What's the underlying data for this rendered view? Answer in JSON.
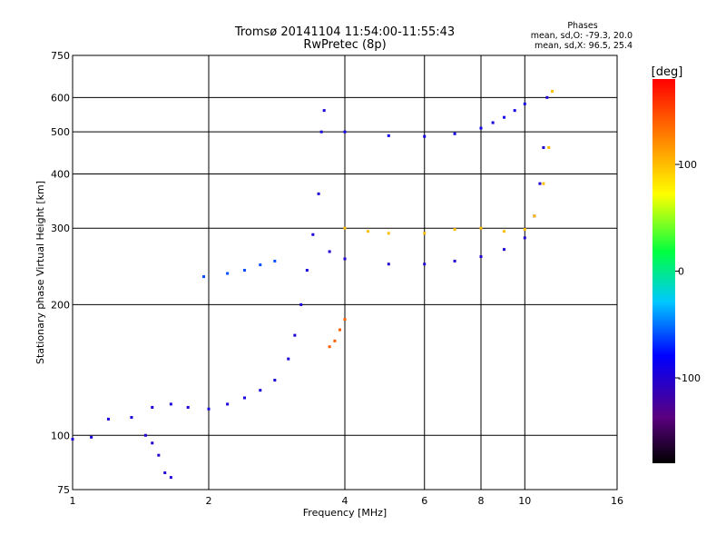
{
  "chart_data": {
    "type": "scatter",
    "title": "Tromsø 20141104 11:54:00-11:55:43",
    "subtitle": "RwPretec (8p)",
    "xlabel": "Frequency [MHz]",
    "ylabel": "Stationary phase Virtual Height [km]",
    "x_scale": "log",
    "y_scale": "log",
    "xlim": [
      1,
      16
    ],
    "ylim": [
      75,
      750
    ],
    "x_ticks": [
      1,
      2,
      4,
      6,
      8,
      10,
      16
    ],
    "y_ticks": [
      75,
      100,
      200,
      300,
      400,
      500,
      600,
      750
    ],
    "grid": true,
    "stats": {
      "heading": "Phases",
      "line_o": "mean, sd,O:  -79.3, 20.0",
      "line_x": "mean, sd,X:   96.5, 25.4"
    },
    "colorbar": {
      "label": "[deg]",
      "range": [
        -180,
        180
      ],
      "ticks": [
        100,
        0,
        -100
      ]
    },
    "series": [
      {
        "points": [
          [
            1.0,
            98
          ],
          [
            1.1,
            99
          ],
          [
            1.2,
            109
          ],
          [
            1.35,
            110
          ],
          [
            1.5,
            116
          ],
          [
            1.65,
            118
          ],
          [
            1.8,
            116
          ],
          [
            2.0,
            115
          ],
          [
            2.2,
            118
          ],
          [
            2.4,
            122
          ],
          [
            2.6,
            127
          ],
          [
            2.8,
            134
          ],
          [
            3.0,
            150
          ],
          [
            3.1,
            170
          ],
          [
            3.2,
            200
          ],
          [
            3.3,
            240
          ],
          [
            3.4,
            290
          ],
          [
            3.5,
            360
          ],
          [
            3.55,
            500
          ],
          [
            3.6,
            560
          ]
        ],
        "phase": -95
      },
      {
        "points": [
          [
            1.45,
            100
          ],
          [
            1.5,
            96
          ],
          [
            1.55,
            90
          ],
          [
            1.6,
            82
          ],
          [
            1.65,
            80
          ]
        ],
        "phase": -100
      },
      {
        "points": [
          [
            1.95,
            232
          ],
          [
            2.2,
            236
          ],
          [
            2.4,
            240
          ],
          [
            2.6,
            247
          ],
          [
            2.8,
            252
          ]
        ],
        "phase": -60
      },
      {
        "points": [
          [
            3.7,
            265
          ],
          [
            4.0,
            255
          ],
          [
            5.0,
            248
          ],
          [
            6.0,
            248
          ],
          [
            7.0,
            252
          ],
          [
            8.0,
            258
          ],
          [
            9.0,
            268
          ],
          [
            10.0,
            285
          ],
          [
            10.5,
            320
          ],
          [
            10.8,
            380
          ],
          [
            11.0,
            460
          ],
          [
            11.2,
            600
          ]
        ],
        "phase": -100
      },
      {
        "points": [
          [
            4.0,
            500
          ],
          [
            5.0,
            490
          ],
          [
            6.0,
            488
          ],
          [
            7.0,
            495
          ],
          [
            8.0,
            510
          ],
          [
            8.5,
            525
          ],
          [
            9.0,
            540
          ],
          [
            9.5,
            560
          ],
          [
            10.0,
            580
          ]
        ],
        "phase": -90
      },
      {
        "points": [
          [
            4.0,
            300
          ],
          [
            4.5,
            295
          ],
          [
            5.0,
            292
          ],
          [
            6.0,
            292
          ],
          [
            7.0,
            298
          ],
          [
            8.0,
            300
          ],
          [
            9.0,
            295
          ],
          [
            10.0,
            298
          ],
          [
            10.5,
            320
          ],
          [
            11.0,
            380
          ],
          [
            11.3,
            460
          ],
          [
            11.5,
            620
          ]
        ],
        "phase": 100
      },
      {
        "points": [
          [
            3.7,
            160
          ],
          [
            3.8,
            165
          ],
          [
            3.9,
            175
          ],
          [
            4.0,
            185
          ]
        ],
        "phase": 140
      }
    ]
  }
}
